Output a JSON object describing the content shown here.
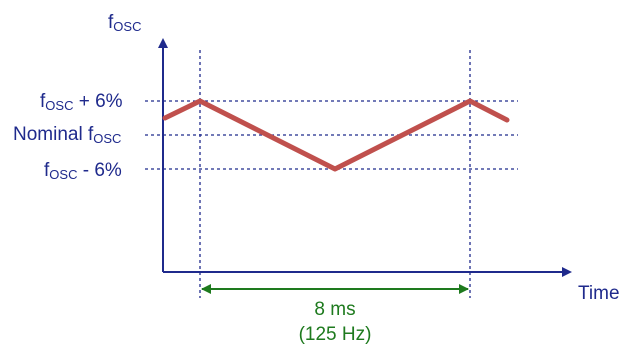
{
  "y_axis": {
    "label_main": "f",
    "label_sub": "OSC"
  },
  "x_axis": {
    "label": "Time"
  },
  "levels": [
    {
      "id": "upper",
      "main": "f",
      "sub": "OSC",
      "suffix": " + 6%"
    },
    {
      "id": "nominal",
      "prefix": "Nominal f",
      "sub": "OSC"
    },
    {
      "id": "lower",
      "main": "f",
      "sub": "OSC",
      "suffix": " - 6%"
    }
  ],
  "period": {
    "duration": "8 ms",
    "frequency": "(125 Hz)"
  },
  "colors": {
    "axis": "#1f2a8c",
    "guide": "#1f2a8c",
    "waveform": "#c0504d",
    "period_arrow": "#1e7a1e"
  }
}
